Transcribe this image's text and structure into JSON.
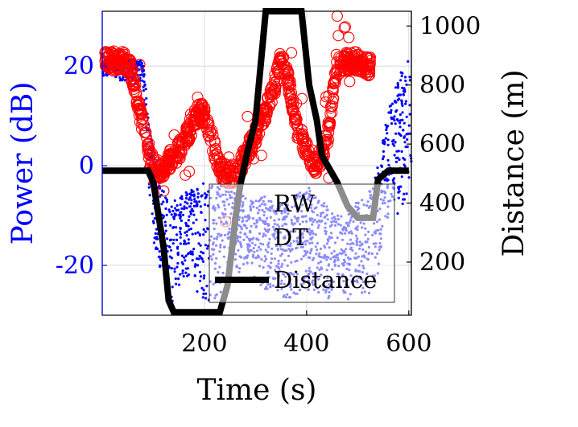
{
  "chart_data": {
    "type": "scatter",
    "xlabel": "Time (s)",
    "ylabel_left": "Power (dB)",
    "ylabel_right": "Distance (m)",
    "xlim": [
      0,
      605
    ],
    "ylim_left": [
      -30,
      31
    ],
    "ylim_right": [
      20,
      1050
    ],
    "xticks": [
      200,
      400,
      600
    ],
    "yticks_left": [
      -20,
      0,
      20
    ],
    "ytick_labels_left": [
      "-20",
      "0",
      "20"
    ],
    "yticks_right": [
      200,
      400,
      600,
      800,
      1000
    ],
    "grid": true,
    "legend_position": "bottom-right",
    "colors": {
      "rw": "#0000ff",
      "dt": "#ff0000",
      "distance": "#000000",
      "left_axis": "#0000ff",
      "right_axis": "#000000"
    },
    "series": [
      {
        "name": "RW",
        "style": "dots",
        "envelope_x": [
          0,
          40,
          80,
          90,
          100,
          110,
          120,
          130,
          150,
          170,
          200,
          220,
          240,
          260,
          280,
          300,
          320,
          340,
          360,
          380,
          400,
          420,
          440,
          460,
          480,
          500,
          520,
          540,
          560,
          580,
          600
        ],
        "envelope_low": [
          18,
          17,
          16,
          -5,
          -15,
          -20,
          -25,
          -28,
          -26,
          -24,
          -27,
          -28,
          -27,
          -24,
          -20,
          -24,
          -25,
          -25,
          -27,
          -26,
          -25,
          -26,
          -27,
          -24,
          -28,
          -25,
          -28,
          -22,
          -10,
          -10,
          -5
        ],
        "envelope_high": [
          22,
          22,
          21,
          12,
          2,
          -3,
          -5,
          -7,
          -6,
          -5,
          -3,
          -4,
          -3,
          -5,
          -6,
          -7,
          -6,
          -8,
          -7,
          -6,
          -4,
          -6,
          -8,
          -10,
          -9,
          -7,
          -6,
          0,
          12,
          18,
          22
        ]
      },
      {
        "name": "DT",
        "style": "open-circles",
        "x": [
          0,
          20,
          40,
          55,
          65,
          75,
          85,
          100,
          115,
          130,
          150,
          170,
          190,
          200,
          210,
          220,
          235,
          250,
          265,
          280,
          300,
          320,
          340,
          350,
          360,
          370,
          380,
          400,
          420,
          440,
          450,
          460,
          480,
          500,
          520
        ],
        "y": [
          21,
          21,
          21,
          20,
          15,
          10,
          5,
          0,
          -1,
          1,
          3,
          7,
          11,
          10,
          7,
          3,
          -1,
          -2,
          -1,
          2,
          6,
          11,
          17,
          22,
          19,
          14,
          8,
          3,
          0,
          5,
          13,
          20,
          21,
          21,
          20
        ]
      },
      {
        "name": "Distance",
        "style": "line",
        "x": [
          0,
          50,
          90,
          100,
          120,
          130,
          140,
          160,
          190,
          200,
          210,
          230,
          245,
          255,
          260,
          270,
          285,
          300,
          320,
          340,
          360,
          380,
          390,
          405,
          420,
          430,
          460,
          480,
          500,
          515,
          530,
          540,
          560,
          580,
          600
        ],
        "y": [
          510,
          510,
          510,
          470,
          250,
          70,
          30,
          30,
          30,
          30,
          30,
          30,
          120,
          260,
          340,
          460,
          580,
          680,
          1050,
          1050,
          1050,
          1050,
          1050,
          800,
          680,
          560,
          470,
          390,
          350,
          350,
          350,
          480,
          510,
          510,
          510
        ]
      }
    ]
  }
}
